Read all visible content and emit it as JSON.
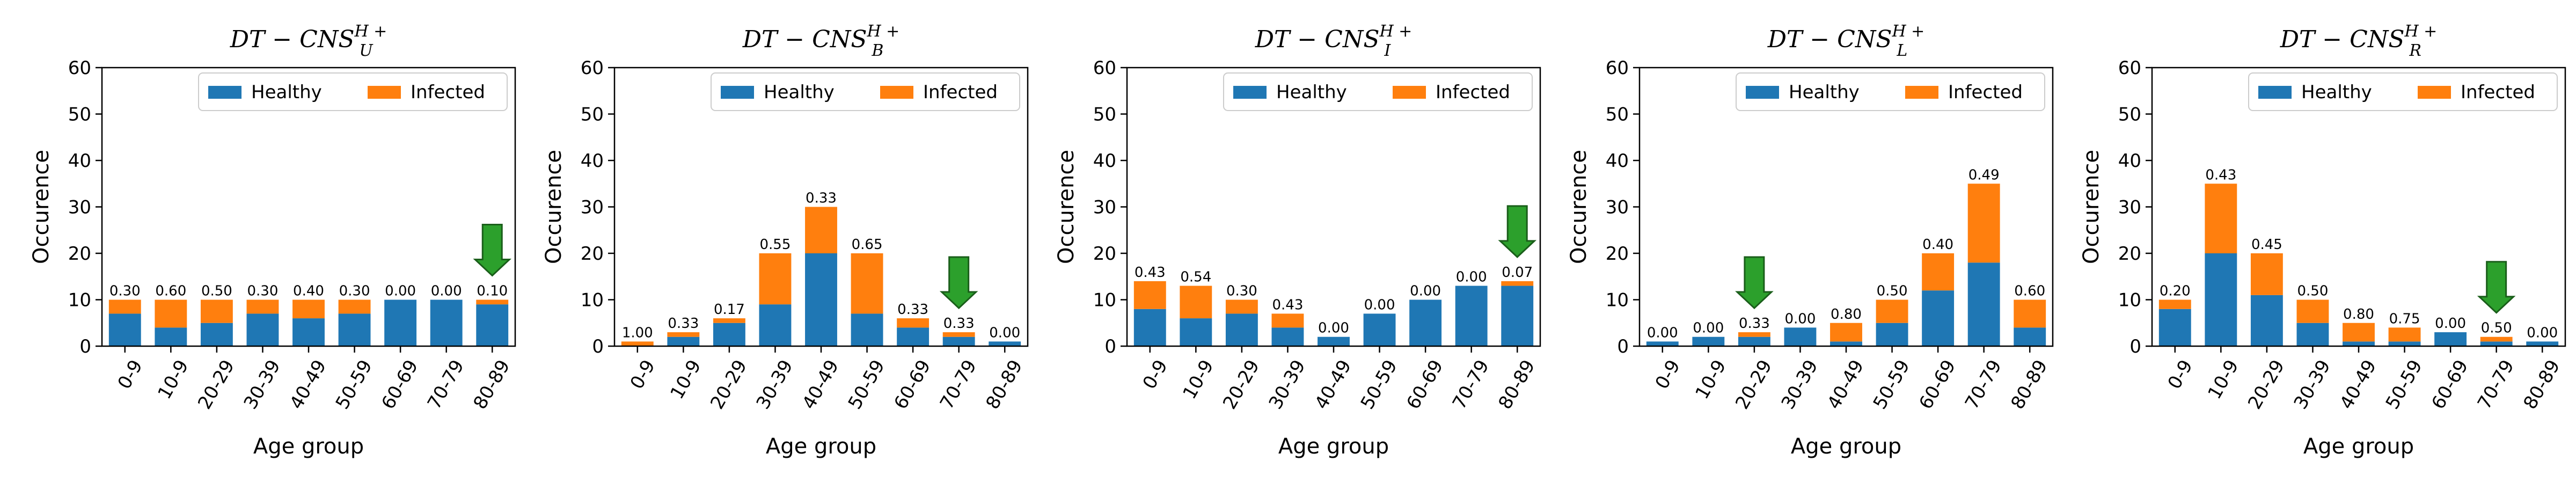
{
  "colors": {
    "healthy": "#1f77b4",
    "infected": "#ff7f0e",
    "arrow": "#2ca02c",
    "arrow_edge": "#1a5e1a"
  },
  "chart_data": [
    {
      "type": "bar",
      "stacked": true,
      "title": {
        "main": "DT − CNS",
        "sub": "U",
        "sup": "H +"
      },
      "xlabel": "Age group",
      "ylabel": "Occurence",
      "ylim": [
        0,
        60
      ],
      "yticks": [
        "0",
        "10",
        "20",
        "30",
        "40",
        "50",
        "60"
      ],
      "categories": [
        "0-9",
        "10-9",
        "20-29",
        "30-39",
        "40-49",
        "50-59",
        "60-69",
        "70-79",
        "80-89"
      ],
      "series": [
        {
          "name": "Healthy",
          "values": [
            7,
            4,
            5,
            7,
            6,
            7,
            10,
            10,
            9
          ]
        },
        {
          "name": "Infected",
          "values": [
            3,
            6,
            5,
            3,
            4,
            3,
            0,
            0,
            1
          ]
        }
      ],
      "data_labels": [
        "0.30",
        "0.60",
        "0.50",
        "0.30",
        "0.40",
        "0.30",
        "0.00",
        "0.00",
        "0.10"
      ],
      "highlight_index": 8,
      "legend": "top-right"
    },
    {
      "type": "bar",
      "stacked": true,
      "title": {
        "main": "DT − CNS",
        "sub": "B",
        "sup": "H +"
      },
      "xlabel": "Age group",
      "ylabel": "Occurence",
      "ylim": [
        0,
        60
      ],
      "yticks": [
        "0",
        "10",
        "20",
        "30",
        "40",
        "50",
        "60"
      ],
      "categories": [
        "0-9",
        "10-9",
        "20-29",
        "30-39",
        "40-49",
        "50-59",
        "60-69",
        "70-79",
        "80-89"
      ],
      "series": [
        {
          "name": "Healthy",
          "values": [
            0,
            2,
            5,
            9,
            20,
            7,
            4,
            2,
            1
          ]
        },
        {
          "name": "Infected",
          "values": [
            1,
            1,
            1,
            11,
            10,
            13,
            2,
            1,
            0
          ]
        }
      ],
      "data_labels": [
        "1.00",
        "0.33",
        "0.17",
        "0.55",
        "0.33",
        "0.65",
        "0.33",
        "0.33",
        "0.00"
      ],
      "highlight_index": 7,
      "legend": "top-right"
    },
    {
      "type": "bar",
      "stacked": true,
      "title": {
        "main": "DT − CNS",
        "sub": "I",
        "sup": "H +"
      },
      "xlabel": "Age group",
      "ylabel": "Occurence",
      "ylim": [
        0,
        60
      ],
      "yticks": [
        "0",
        "10",
        "20",
        "30",
        "40",
        "50",
        "60"
      ],
      "categories": [
        "0-9",
        "10-9",
        "20-29",
        "30-39",
        "40-49",
        "50-59",
        "60-69",
        "70-79",
        "80-89"
      ],
      "series": [
        {
          "name": "Healthy",
          "values": [
            8,
            6,
            7,
            4,
            2,
            7,
            10,
            13,
            13
          ]
        },
        {
          "name": "Infected",
          "values": [
            6,
            7,
            3,
            3,
            0,
            0,
            0,
            0,
            1
          ]
        }
      ],
      "data_labels": [
        "0.43",
        "0.54",
        "0.30",
        "0.43",
        "0.00",
        "0.00",
        "0.00",
        "0.00",
        "0.07"
      ],
      "highlight_index": 8,
      "legend": "top-right"
    },
    {
      "type": "bar",
      "stacked": true,
      "title": {
        "main": "DT − CNS",
        "sub": "L",
        "sup": "H +"
      },
      "xlabel": "Age group",
      "ylabel": "Occurence",
      "ylim": [
        0,
        60
      ],
      "yticks": [
        "0",
        "10",
        "20",
        "30",
        "40",
        "50",
        "60"
      ],
      "categories": [
        "0-9",
        "10-9",
        "20-29",
        "30-39",
        "40-49",
        "50-59",
        "60-69",
        "70-79",
        "80-89"
      ],
      "series": [
        {
          "name": "Healthy",
          "values": [
            1,
            2,
            2,
            4,
            1,
            5,
            12,
            18,
            4
          ]
        },
        {
          "name": "Infected",
          "values": [
            0,
            0,
            1,
            0,
            4,
            5,
            8,
            17,
            6
          ]
        }
      ],
      "data_labels": [
        "0.00",
        "0.00",
        "0.33",
        "0.00",
        "0.80",
        "0.50",
        "0.40",
        "0.49",
        "0.60"
      ],
      "highlight_index": 2,
      "legend": "top-right"
    },
    {
      "type": "bar",
      "stacked": true,
      "title": {
        "main": "DT − CNS",
        "sub": "R",
        "sup": "H +"
      },
      "xlabel": "Age group",
      "ylabel": "Occurence",
      "ylim": [
        0,
        60
      ],
      "yticks": [
        "0",
        "10",
        "20",
        "30",
        "40",
        "50",
        "60"
      ],
      "categories": [
        "0-9",
        "10-9",
        "20-29",
        "30-39",
        "40-49",
        "50-59",
        "60-69",
        "70-79",
        "80-89"
      ],
      "series": [
        {
          "name": "Healthy",
          "values": [
            8,
            20,
            11,
            5,
            1,
            1,
            3,
            1,
            1
          ]
        },
        {
          "name": "Infected",
          "values": [
            2,
            15,
            9,
            5,
            4,
            3,
            0,
            1,
            0
          ]
        }
      ],
      "data_labels": [
        "0.20",
        "0.43",
        "0.45",
        "0.50",
        "0.80",
        "0.75",
        "0.00",
        "0.50",
        "0.00"
      ],
      "highlight_index": 7,
      "legend": "top-right"
    }
  ]
}
